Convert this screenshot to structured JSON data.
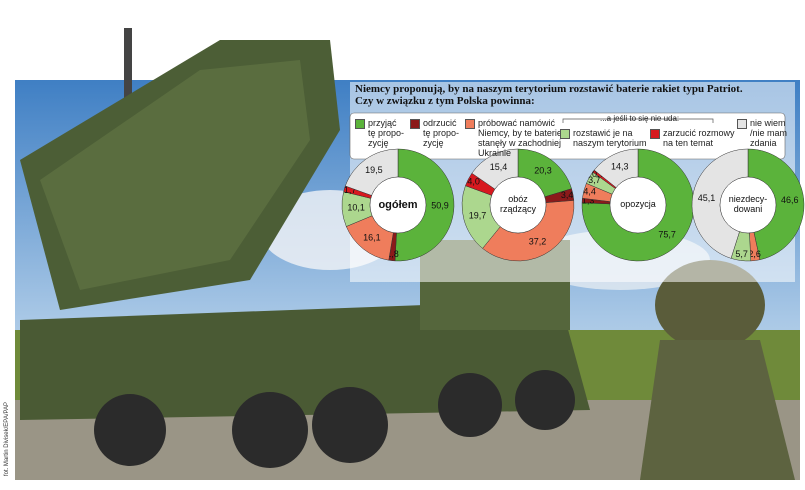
{
  "chart_data": {
    "type": "pie",
    "donut": true,
    "title": "Niemcy proponują, by na naszym terytorium rozstawić baterie rakiet typu Patriot.\nCzy w związku z tym Polska powinna:",
    "subtitle": "...a jeśli to się nie uda:",
    "credit": "fot. Martin Divisek/EPA/PAP",
    "categories": [
      "przyjąć\ntę propo-\nzycję",
      "odrzucić\ntę propo-\nzycję",
      "próbować namówić\nNiemcy, by te baterie\nstanęły w zachodniej\nUkrainie",
      "rozstawić je na\nnaszym terytorium",
      "zarzucić rozmowy\nna ten temat",
      "nie wiem\n/nie mam\nzdania"
    ],
    "colors": [
      "#5bb33b",
      "#8b1a1a",
      "#ef7d5c",
      "#acd78e",
      "#d7191f",
      "#e4e4e4"
    ],
    "pies": [
      {
        "name": "ogółem",
        "values": [
          50.9,
          1.8,
          16.1,
          10.1,
          1.7,
          19.5
        ],
        "value_labels": [
          "50,9",
          "1,8",
          "16,1",
          "10,1",
          "1,7",
          "19,5"
        ]
      },
      {
        "name": "obóz\nrządzący",
        "values": [
          20.3,
          3.4,
          37.2,
          19.7,
          4.0,
          15.4
        ],
        "value_labels": [
          "20,3",
          "3,4",
          "37,2",
          "19,7",
          "4,0",
          "15,4"
        ]
      },
      {
        "name": "opozycja",
        "values": [
          75.7,
          1.3,
          4.4,
          3.7,
          0.7,
          14.3
        ],
        "value_labels": [
          "75,7",
          "1,3",
          "4,4",
          "3,7",
          "0,7",
          "14,3"
        ]
      },
      {
        "name": "niezdecy-\ndowani",
        "values": [
          46.6,
          null,
          2.6,
          5.7,
          null,
          45.1
        ],
        "value_labels": [
          "46,6",
          null,
          "2,6",
          "5,7",
          null,
          "45,1"
        ]
      }
    ]
  }
}
